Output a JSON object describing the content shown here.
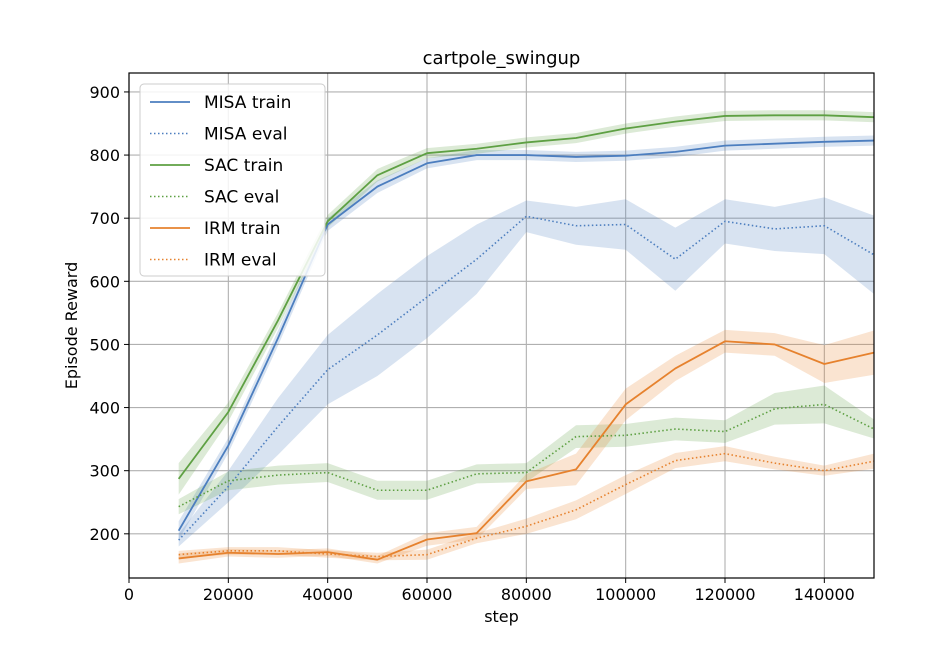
{
  "chart_data": {
    "type": "line",
    "title": "cartpole_swingup",
    "xlabel": "step",
    "ylabel": "Episode Reward",
    "xlim": [
      0,
      150000
    ],
    "ylim": [
      130,
      930
    ],
    "xticks": [
      0,
      20000,
      40000,
      60000,
      80000,
      100000,
      120000,
      140000
    ],
    "yticks": [
      200,
      300,
      400,
      500,
      600,
      700,
      800,
      900
    ],
    "grid": true,
    "legend_position": "upper-left",
    "x": [
      10000,
      20000,
      30000,
      40000,
      50000,
      60000,
      70000,
      80000,
      90000,
      100000,
      110000,
      120000,
      130000,
      140000,
      150000
    ],
    "series": [
      {
        "name": "MISA train",
        "color": "#4c7ebf",
        "style": "solid",
        "values": [
          205,
          340,
          510,
          690,
          750,
          787,
          800,
          800,
          797,
          799,
          805,
          815,
          818,
          821,
          823
        ],
        "band": [
          15,
          12,
          12,
          10,
          10,
          8,
          8,
          8,
          8,
          8,
          8,
          8,
          8,
          8,
          8
        ]
      },
      {
        "name": "MISA eval",
        "color": "#4c7ebf",
        "style": "dotted",
        "values": [
          190,
          275,
          370,
          460,
          515,
          575,
          635,
          703,
          688,
          690,
          635,
          695,
          683,
          688,
          642
        ],
        "band": [
          10,
          25,
          45,
          55,
          65,
          65,
          55,
          25,
          30,
          40,
          50,
          35,
          35,
          45,
          62
        ]
      },
      {
        "name": "SAC train",
        "color": "#5ea043",
        "style": "solid",
        "values": [
          287,
          393,
          538,
          695,
          768,
          803,
          810,
          820,
          827,
          842,
          853,
          862,
          863,
          863,
          860
        ],
        "band": [
          25,
          15,
          12,
          10,
          10,
          8,
          8,
          8,
          8,
          8,
          8,
          8,
          8,
          8,
          8
        ]
      },
      {
        "name": "SAC eval",
        "color": "#5ea043",
        "style": "dotted",
        "values": [
          243,
          284,
          293,
          297,
          269,
          269,
          295,
          297,
          354,
          356,
          366,
          362,
          398,
          405,
          366
        ],
        "band": [
          12,
          15,
          15,
          15,
          15,
          15,
          15,
          15,
          18,
          18,
          18,
          18,
          25,
          30,
          15
        ]
      },
      {
        "name": "IRM train",
        "color": "#e6822e",
        "style": "solid",
        "values": [
          161,
          170,
          168,
          171,
          159,
          191,
          201,
          283,
          302,
          405,
          462,
          505,
          500,
          469,
          487
        ],
        "band": [
          8,
          6,
          6,
          6,
          6,
          10,
          10,
          12,
          25,
          25,
          20,
          18,
          18,
          30,
          35
        ]
      },
      {
        "name": "IRM eval",
        "color": "#e6822e",
        "style": "dotted",
        "values": [
          167,
          173,
          173,
          168,
          164,
          167,
          193,
          212,
          238,
          278,
          316,
          327,
          312,
          300,
          315
        ],
        "band": [
          6,
          6,
          6,
          6,
          6,
          8,
          8,
          12,
          15,
          15,
          12,
          12,
          10,
          8,
          12
        ]
      }
    ]
  }
}
